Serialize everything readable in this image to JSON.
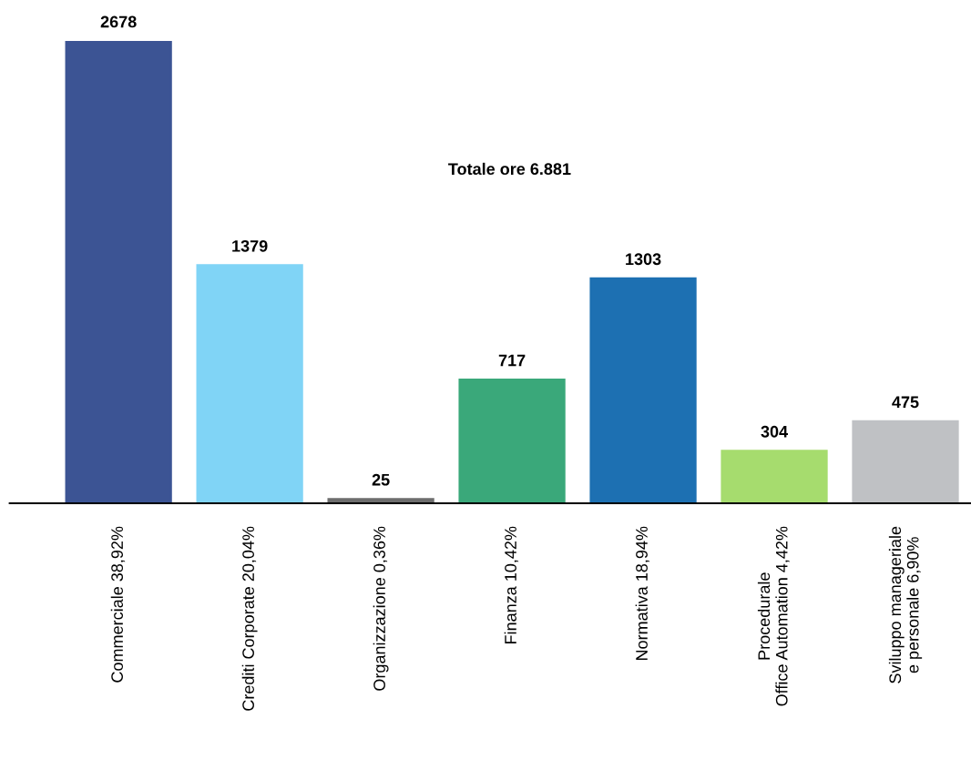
{
  "chart_data": {
    "type": "bar",
    "title": "Totale ore 6.881",
    "categories": [
      "Commerciale 38,92%",
      "Crediti Corporate 20,04%",
      "Organizzazione 0,36%",
      "Finanza 10,42%",
      "Normativa 18,94%",
      "Procedurale\nOffice Automation 4,42%",
      "Sviluppo manageriale\ne personale 6,90%"
    ],
    "values": [
      2678,
      1379,
      25,
      717,
      1303,
      304,
      475
    ],
    "colors": [
      "#3c5494",
      "#80d4f6",
      "#6e6e6e",
      "#3aa87a",
      "#1d70b2",
      "#a6dc6e",
      "#bfc1c4"
    ],
    "data_labels": true,
    "grid": false,
    "legend": false
  }
}
